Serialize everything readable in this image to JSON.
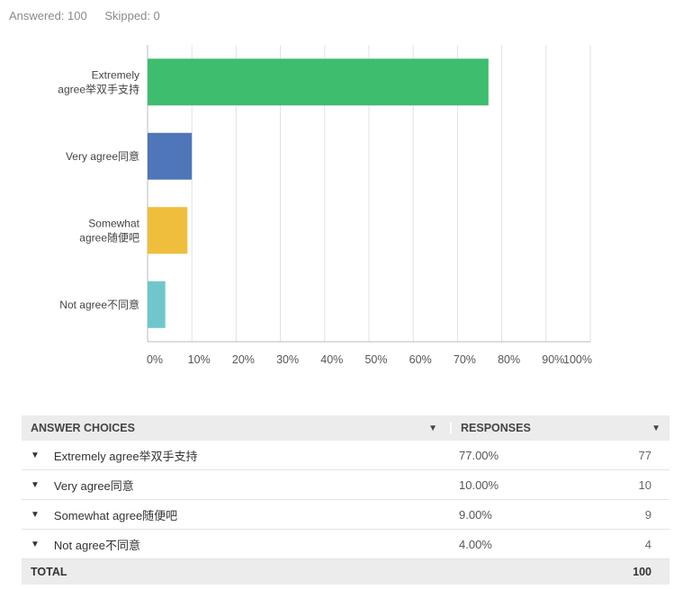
{
  "summary": {
    "answered": "Answered: 100",
    "skipped": "Skipped: 0"
  },
  "chart_data": {
    "type": "bar",
    "orientation": "horizontal",
    "categories": [
      [
        "Extremely",
        "agree举双手支持"
      ],
      [
        "Very agree同意"
      ],
      [
        "Somewhat",
        "agree随便吧"
      ],
      [
        "Not agree不同意"
      ]
    ],
    "values": [
      77,
      10,
      9,
      4
    ],
    "colors": [
      "#3ebd6e",
      "#4e76b8",
      "#f0be3d",
      "#6fc6cc"
    ],
    "xticks": [
      "0%",
      "10%",
      "20%",
      "30%",
      "40%",
      "50%",
      "60%",
      "70%",
      "80%",
      "90%",
      "100%"
    ],
    "xlim": [
      0,
      100
    ],
    "grid": true
  },
  "table": {
    "headers": {
      "choices": "ANSWER CHOICES",
      "responses": "RESPONSES"
    },
    "rows": [
      {
        "label": "Extremely agree举双手支持",
        "percent": "77.00%",
        "count": "77"
      },
      {
        "label": "Very agree同意",
        "percent": "10.00%",
        "count": "10"
      },
      {
        "label": "Somewhat agree随便吧",
        "percent": "9.00%",
        "count": "9"
      },
      {
        "label": "Not agree不同意",
        "percent": "4.00%",
        "count": "4"
      }
    ],
    "total": {
      "label": "TOTAL",
      "count": "100"
    }
  }
}
